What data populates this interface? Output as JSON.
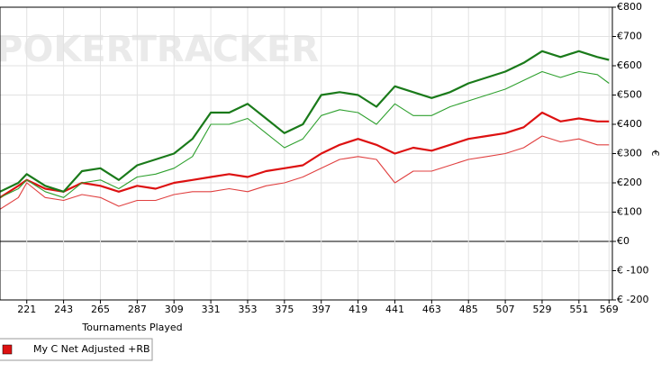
{
  "chart_data": {
    "type": "line",
    "watermark": "POKERTRACKER",
    "x_label": "Tournaments Played",
    "y_label": "€",
    "x": [
      205,
      216,
      221,
      232,
      243,
      254,
      265,
      276,
      287,
      298,
      309,
      320,
      331,
      342,
      353,
      364,
      375,
      386,
      397,
      408,
      419,
      430,
      441,
      452,
      463,
      474,
      485,
      496,
      507,
      518,
      529,
      540,
      551,
      562,
      569
    ],
    "series": [
      {
        "color": "#1a7a1a",
        "width": 2.2,
        "values": [
          170,
          200,
          230,
          190,
          170,
          240,
          250,
          210,
          260,
          280,
          300,
          350,
          440,
          440,
          470,
          420,
          370,
          400,
          500,
          510,
          500,
          460,
          530,
          510,
          490,
          510,
          540,
          560,
          580,
          610,
          650,
          630,
          650,
          630,
          620
        ]
      },
      {
        "color": "#2ea02e",
        "width": 1.1,
        "values": [
          150,
          180,
          210,
          170,
          150,
          200,
          210,
          180,
          220,
          230,
          250,
          290,
          400,
          400,
          420,
          370,
          320,
          350,
          430,
          450,
          440,
          400,
          470,
          430,
          430,
          460,
          480,
          500,
          520,
          550,
          580,
          560,
          580,
          570,
          540
        ]
      },
      {
        "name": "My C Net Adjusted +RB",
        "color": "#dd1111",
        "width": 2.2,
        "values": [
          150,
          190,
          210,
          180,
          170,
          200,
          190,
          170,
          190,
          180,
          200,
          210,
          220,
          230,
          220,
          240,
          250,
          260,
          300,
          330,
          350,
          330,
          300,
          320,
          310,
          330,
          350,
          360,
          370,
          390,
          440,
          410,
          420,
          410,
          410
        ]
      },
      {
        "color": "#e04040",
        "width": 1.1,
        "values": [
          110,
          150,
          200,
          150,
          140,
          160,
          150,
          120,
          140,
          140,
          160,
          170,
          170,
          180,
          170,
          190,
          200,
          220,
          250,
          280,
          290,
          280,
          200,
          240,
          240,
          260,
          280,
          290,
          300,
          320,
          360,
          340,
          350,
          330,
          330
        ]
      }
    ],
    "xlim": [
      205,
      571
    ],
    "xticks": [
      221,
      243,
      265,
      287,
      309,
      331,
      353,
      375,
      397,
      419,
      441,
      463,
      485,
      507,
      529,
      551,
      569
    ],
    "ylim": [
      -200,
      800
    ],
    "yticks": [
      {
        "value": -200,
        "label": "€ -200"
      },
      {
        "value": -100,
        "label": "€ -100"
      },
      {
        "value": 0,
        "label": "€0"
      },
      {
        "value": 100,
        "label": "€100"
      },
      {
        "value": 200,
        "label": "€200"
      },
      {
        "value": 300,
        "label": "€300"
      },
      {
        "value": 400,
        "label": "€400"
      },
      {
        "value": 500,
        "label": "€500"
      },
      {
        "value": 600,
        "label": "€600"
      },
      {
        "value": 700,
        "label": "€700"
      },
      {
        "value": 800,
        "label": "€800"
      }
    ],
    "grid": true
  }
}
